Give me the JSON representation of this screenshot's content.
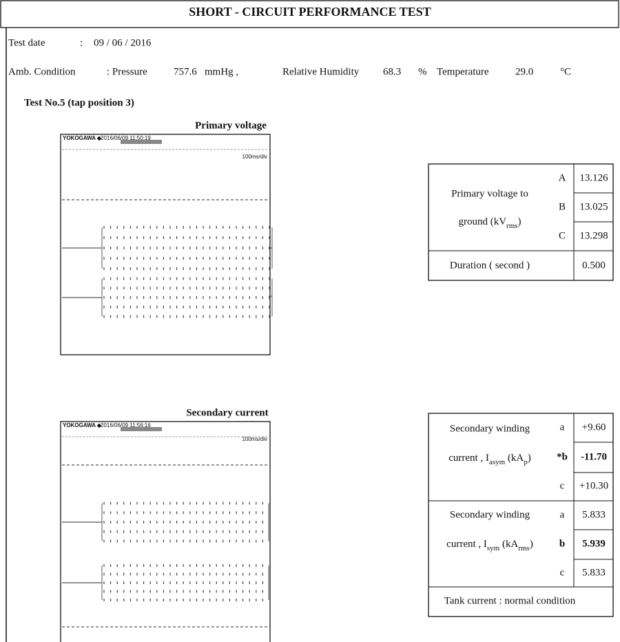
{
  "header": {
    "title": "SHORT - CIRCUIT PERFORMANCE TEST"
  },
  "test_date": {
    "label": "Test date",
    "separator": ":",
    "value": "09 / 06 / 2016"
  },
  "ambient": {
    "label": "Amb. Condition",
    "pressure_label": ": Pressure",
    "pressure": "757.6",
    "pressure_unit": "mmHg ,",
    "humidity_label": "Relative Humidity",
    "humidity": "68.3",
    "humidity_unit": "%",
    "temperature_label": "Temperature",
    "temperature": "29.0",
    "temperature_unit": "°C"
  },
  "test": {
    "heading": "Test No.5 (tap position 3)"
  },
  "primary": {
    "caption": "Primary voltage",
    "scope": {
      "brand": "YOKOGAWA ◆",
      "timestamp": "2016/06/09 11:50:19",
      "timebase": "100ms/div"
    },
    "table": {
      "label_line1": "Primary voltage to",
      "label_line2": "ground (kV",
      "label_sub": "rms",
      "label_close": ")",
      "rows": [
        {
          "phase": "A",
          "value": "13.126"
        },
        {
          "phase": "B",
          "value": "13.025"
        },
        {
          "phase": "C",
          "value": "13.298"
        }
      ],
      "duration_label": "Duration ( second )",
      "duration": "0.500"
    }
  },
  "secondary": {
    "caption": "Secondary current",
    "scope": {
      "brand": "YOKOGAWA ◆",
      "timestamp": "2016/06/09 11:56:16",
      "timebase": "100ms/div"
    },
    "groups": [
      {
        "label_line1": "Secondary winding",
        "label_line2": "current , I",
        "label_sub": "asym",
        "label_mid": " (kA",
        "label_sub2": "p",
        "label_close": ")",
        "rows": [
          {
            "phase": "a",
            "value": "+9.60",
            "emphasis": false
          },
          {
            "phase": "*b",
            "value": "-11.70",
            "emphasis": true
          },
          {
            "phase": "c",
            "value": "+10.30",
            "emphasis": false
          }
        ]
      },
      {
        "label_line1": "Secondary winding",
        "label_line2": "current , I",
        "label_sub": "sym",
        "label_mid": " (kA",
        "label_sub2": "rms",
        "label_close": ")",
        "rows": [
          {
            "phase": "a",
            "value": "5.833",
            "emphasis": false
          },
          {
            "phase": "b",
            "value": "5.939",
            "emphasis": true
          },
          {
            "phase": "c",
            "value": "5.833",
            "emphasis": false
          }
        ]
      }
    ],
    "tank": "Tank current : normal condition"
  }
}
